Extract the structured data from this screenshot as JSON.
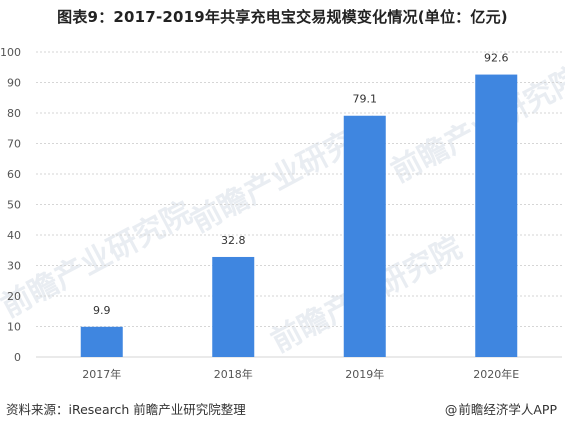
{
  "title": "图表9：2017-2019年共享充电宝交易规模变化情况(单位：亿元)",
  "footer": {
    "source": "资料来源：iResearch 前瞻产业研究院整理",
    "brand_prefix": "@",
    "brand": "前瞻经济学人APP"
  },
  "watermark": {
    "text": "前瞻产业研究院"
  },
  "colors": {
    "bar": "#3f86e0",
    "grid": "#d6d6d6",
    "axis_text": "#555555",
    "label_text": "#333333"
  },
  "chart_data": {
    "type": "bar",
    "categories": [
      "2017年",
      "2018年",
      "2019年",
      "2020年E"
    ],
    "values": [
      9.9,
      32.8,
      79.1,
      92.6
    ],
    "value_labels": [
      "9.9",
      "32.8",
      "79.1",
      "92.6"
    ],
    "yticks": [
      0,
      10,
      20,
      30,
      40,
      50,
      60,
      70,
      80,
      90,
      100
    ],
    "ylim": [
      0,
      100
    ],
    "grid": true,
    "legend": "none"
  }
}
